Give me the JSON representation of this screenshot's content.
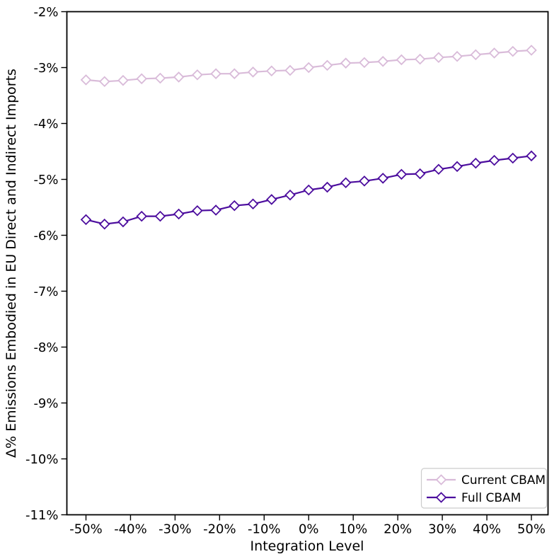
{
  "figure": {
    "background": "#ffffff",
    "title": ""
  },
  "chart_data": {
    "type": "line",
    "title": "",
    "xlabel": "Integration Level",
    "ylabel": "Δ% Emissions Embodied in EU Direct and Indirect Imports",
    "xlim": [
      -50,
      50
    ],
    "ylim": [
      -11,
      -2
    ],
    "grid": false,
    "x_tick_labels": [
      "-50%",
      "-40%",
      "-30%",
      "-20%",
      "-10%",
      "0%",
      "10%",
      "20%",
      "30%",
      "40%",
      "50%"
    ],
    "x_tick_values": [
      -50,
      -40,
      -30,
      -20,
      -10,
      0,
      10,
      20,
      30,
      40,
      50
    ],
    "y_tick_labels": [
      "-2%",
      "-3%",
      "-4%",
      "-5%",
      "-6%",
      "-7%",
      "-8%",
      "-9%",
      "-10%",
      "-11%"
    ],
    "y_tick_values": [
      -2,
      -3,
      -4,
      -5,
      -6,
      -7,
      -8,
      -9,
      -10,
      -11
    ],
    "x": [
      -50,
      -45.83,
      -41.67,
      -37.5,
      -33.33,
      -29.17,
      -25,
      -20.83,
      -16.67,
      -12.5,
      -8.33,
      -4.17,
      0,
      4.17,
      8.33,
      12.5,
      16.67,
      20.83,
      25,
      29.17,
      33.33,
      37.5,
      41.67,
      45.83,
      50
    ],
    "series": [
      {
        "name": "Current CBAM",
        "color": "#d9bbd9",
        "marker": "diamond",
        "marker_face": "#ffffff",
        "values": [
          -3.22,
          -3.25,
          -3.23,
          -3.2,
          -3.19,
          -3.17,
          -3.13,
          -3.11,
          -3.11,
          -3.08,
          -3.06,
          -3.05,
          -3.0,
          -2.96,
          -2.92,
          -2.91,
          -2.89,
          -2.86,
          -2.85,
          -2.82,
          -2.8,
          -2.77,
          -2.74,
          -2.71,
          -2.69
        ]
      },
      {
        "name": "Full CBAM",
        "color": "#4c0d9e",
        "marker": "diamond",
        "marker_face": "#ffffff",
        "values": [
          -5.72,
          -5.8,
          -5.76,
          -5.66,
          -5.66,
          -5.62,
          -5.56,
          -5.55,
          -5.47,
          -5.44,
          -5.36,
          -5.28,
          -5.19,
          -5.14,
          -5.06,
          -5.03,
          -4.98,
          -4.91,
          -4.9,
          -4.82,
          -4.77,
          -4.71,
          -4.66,
          -4.62,
          -4.58
        ]
      }
    ],
    "legend": {
      "position": "lower right",
      "border_color": "#cccccc",
      "background": "#ffffff"
    }
  }
}
